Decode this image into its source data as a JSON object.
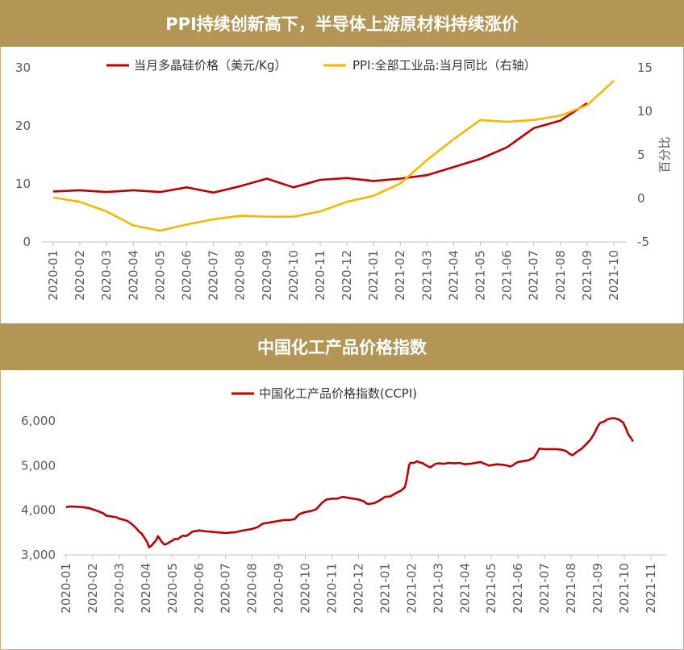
{
  "header": {
    "top_title": "PPI持续创新高下，半导体上游原材料持续涨价",
    "bottom_title": "中国化工产品价格指数"
  },
  "colors": {
    "band": "#b39556",
    "series_red": "#c00000",
    "series_yellow": "#f5b800",
    "axis": "#bfbfbf",
    "text": "#595959"
  },
  "chart_data": [
    {
      "type": "line",
      "title": "PPI持续创新高下，半导体上游原材料持续涨价",
      "categories": [
        "2020-01",
        "2020-02",
        "2020-03",
        "2020-04",
        "2020-05",
        "2020-06",
        "2020-07",
        "2020-08",
        "2020-09",
        "2020-10",
        "2020-11",
        "2020-12",
        "2021-01",
        "2021-02",
        "2021-03",
        "2021-04",
        "2021-05",
        "2021-06",
        "2021-07",
        "2021-08",
        "2021-09",
        "2021-10"
      ],
      "ylim": [
        0,
        30
      ],
      "yticks": [
        0,
        10,
        20,
        30
      ],
      "y2lim": [
        -5,
        15
      ],
      "y2ticks": [
        -5,
        0,
        5,
        10,
        15
      ],
      "y2label": "百分比",
      "legend_position": "top",
      "series": [
        {
          "name": "当月多晶硅价格（美元/Kg）",
          "axis": "left",
          "color": "#c00000",
          "values": [
            8.7,
            8.9,
            8.6,
            8.9,
            8.6,
            9.4,
            8.5,
            9.6,
            10.9,
            9.4,
            10.7,
            11.0,
            10.5,
            10.9,
            11.5,
            12.9,
            14.3,
            16.3,
            19.6,
            20.9,
            23.9,
            null
          ]
        },
        {
          "name": "PPI:全部工业品:当月同比（右轴）",
          "axis": "right",
          "color": "#f5b800",
          "values": [
            0.1,
            -0.4,
            -1.5,
            -3.1,
            -3.7,
            -3.0,
            -2.4,
            -2.0,
            -2.1,
            -2.1,
            -1.5,
            -0.4,
            0.3,
            1.7,
            4.4,
            6.8,
            9.0,
            8.8,
            9.0,
            9.5,
            10.7,
            13.5
          ]
        }
      ]
    },
    {
      "type": "line",
      "title": "中国化工产品价格指数",
      "ylim": [
        3000,
        6000
      ],
      "yticks": [
        "3,000",
        "4,000",
        "5,000",
        "6,000"
      ],
      "ytick_values": [
        3000,
        4000,
        5000,
        6000
      ],
      "xticks": [
        "2020-01",
        "2020-02",
        "2020-03",
        "2020-04",
        "2020-05",
        "2020-06",
        "2020-07",
        "2020-08",
        "2020-09",
        "2020-10",
        "2020-11",
        "2020-12",
        "2021-01",
        "2021-02",
        "2021-03",
        "2021-04",
        "2021-05",
        "2021-06",
        "2021-07",
        "2021-08",
        "2021-09",
        "2021-10",
        "2021-11"
      ],
      "legend_position": "top",
      "series": [
        {
          "name": "中国化工产品价格指数(CCPI)",
          "color": "#c00000",
          "points": [
            [
              0.0,
              4070
            ],
            [
              0.15,
              4085
            ],
            [
              0.3,
              4080
            ],
            [
              0.6,
              4070
            ],
            [
              0.85,
              4050
            ],
            [
              1.0,
              4020
            ],
            [
              1.2,
              3980
            ],
            [
              1.4,
              3930
            ],
            [
              1.5,
              3880
            ],
            [
              1.7,
              3860
            ],
            [
              1.9,
              3840
            ],
            [
              2.0,
              3810
            ],
            [
              2.15,
              3790
            ],
            [
              2.3,
              3760
            ],
            [
              2.45,
              3700
            ],
            [
              2.6,
              3620
            ],
            [
              2.75,
              3520
            ],
            [
              2.85,
              3470
            ],
            [
              2.95,
              3380
            ],
            [
              3.05,
              3280
            ],
            [
              3.12,
              3170
            ],
            [
              3.2,
              3200
            ],
            [
              3.3,
              3270
            ],
            [
              3.4,
              3340
            ],
            [
              3.45,
              3420
            ],
            [
              3.5,
              3380
            ],
            [
              3.6,
              3290
            ],
            [
              3.7,
              3230
            ],
            [
              3.8,
              3250
            ],
            [
              3.9,
              3290
            ],
            [
              4.0,
              3320
            ],
            [
              4.1,
              3360
            ],
            [
              4.2,
              3350
            ],
            [
              4.3,
              3400
            ],
            [
              4.4,
              3430
            ],
            [
              4.5,
              3420
            ],
            [
              4.6,
              3450
            ],
            [
              4.7,
              3500
            ],
            [
              4.8,
              3530
            ],
            [
              4.9,
              3530
            ],
            [
              5.0,
              3550
            ],
            [
              5.1,
              3540
            ],
            [
              5.2,
              3530
            ],
            [
              5.4,
              3520
            ],
            [
              5.6,
              3510
            ],
            [
              5.8,
              3500
            ],
            [
              6.0,
              3490
            ],
            [
              6.2,
              3500
            ],
            [
              6.4,
              3510
            ],
            [
              6.6,
              3540
            ],
            [
              6.8,
              3560
            ],
            [
              7.0,
              3580
            ],
            [
              7.2,
              3620
            ],
            [
              7.4,
              3700
            ],
            [
              7.6,
              3720
            ],
            [
              7.8,
              3740
            ],
            [
              8.0,
              3760
            ],
            [
              8.2,
              3780
            ],
            [
              8.4,
              3780
            ],
            [
              8.6,
              3800
            ],
            [
              8.7,
              3870
            ],
            [
              8.8,
              3920
            ],
            [
              9.0,
              3960
            ],
            [
              9.2,
              3980
            ],
            [
              9.4,
              4020
            ],
            [
              9.5,
              4080
            ],
            [
              9.6,
              4150
            ],
            [
              9.7,
              4200
            ],
            [
              9.8,
              4240
            ],
            [
              10.0,
              4260
            ],
            [
              10.2,
              4260
            ],
            [
              10.4,
              4300
            ],
            [
              10.6,
              4280
            ],
            [
              10.8,
              4260
            ],
            [
              11.0,
              4240
            ],
            [
              11.2,
              4200
            ],
            [
              11.3,
              4150
            ],
            [
              11.4,
              4140
            ],
            [
              11.6,
              4160
            ],
            [
              11.8,
              4220
            ],
            [
              12.0,
              4300
            ],
            [
              12.2,
              4310
            ],
            [
              12.4,
              4380
            ],
            [
              12.6,
              4440
            ],
            [
              12.75,
              4520
            ],
            [
              12.8,
              4660
            ],
            [
              12.85,
              4820
            ],
            [
              12.9,
              5000
            ],
            [
              12.95,
              5060
            ],
            [
              13.1,
              5060
            ],
            [
              13.2,
              5100
            ],
            [
              13.3,
              5070
            ],
            [
              13.4,
              5060
            ],
            [
              13.5,
              5020
            ],
            [
              13.6,
              4990
            ],
            [
              13.7,
              4960
            ],
            [
              13.8,
              5000
            ],
            [
              13.9,
              5040
            ],
            [
              14.0,
              5050
            ],
            [
              14.2,
              5040
            ],
            [
              14.4,
              5060
            ],
            [
              14.6,
              5050
            ],
            [
              14.8,
              5060
            ],
            [
              15.0,
              5030
            ],
            [
              15.2,
              5040
            ],
            [
              15.4,
              5060
            ],
            [
              15.6,
              5080
            ],
            [
              15.7,
              5050
            ],
            [
              15.8,
              5030
            ],
            [
              15.9,
              5000
            ],
            [
              16.0,
              5010
            ],
            [
              16.2,
              5030
            ],
            [
              16.4,
              5020
            ],
            [
              16.6,
              5000
            ],
            [
              16.7,
              4980
            ],
            [
              16.8,
              5000
            ],
            [
              16.9,
              5050
            ],
            [
              17.0,
              5080
            ],
            [
              17.2,
              5100
            ],
            [
              17.4,
              5120
            ],
            [
              17.6,
              5180
            ],
            [
              17.7,
              5270
            ],
            [
              17.8,
              5380
            ],
            [
              18.0,
              5370
            ],
            [
              18.2,
              5370
            ],
            [
              18.4,
              5370
            ],
            [
              18.6,
              5360
            ],
            [
              18.8,
              5330
            ],
            [
              18.95,
              5260
            ],
            [
              19.05,
              5230
            ],
            [
              19.2,
              5300
            ],
            [
              19.4,
              5380
            ],
            [
              19.6,
              5500
            ],
            [
              19.75,
              5600
            ],
            [
              19.9,
              5750
            ],
            [
              20.0,
              5880
            ],
            [
              20.1,
              5960
            ],
            [
              20.25,
              5990
            ],
            [
              20.35,
              6030
            ],
            [
              20.5,
              6060
            ],
            [
              20.65,
              6060
            ],
            [
              20.8,
              6030
            ],
            [
              20.95,
              5970
            ],
            [
              21.05,
              5850
            ],
            [
              21.15,
              5700
            ],
            [
              21.25,
              5620
            ],
            [
              21.33,
              5540
            ]
          ]
        }
      ]
    }
  ]
}
